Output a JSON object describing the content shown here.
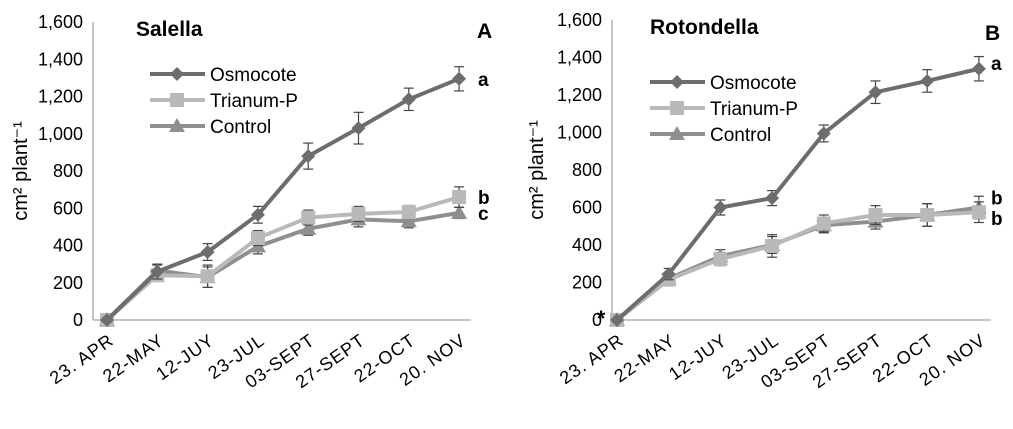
{
  "chart_data": [
    {
      "type": "line",
      "panel_label": "A",
      "title": "Salella",
      "ylabel": "cm² plant⁻¹",
      "ylim": [
        0,
        1600
      ],
      "yticks": [
        0,
        200,
        400,
        600,
        800,
        1000,
        1200,
        1400,
        1600
      ],
      "ytick_labels": [
        "0",
        "200",
        "400",
        "600",
        "800",
        "1,000",
        "1,200",
        "1,400",
        "1,600"
      ],
      "categories": [
        "23. APR",
        "22-MAY",
        "12-JUY",
        "23-JUL",
        "03-SEPT",
        "27-SEPT",
        "22-OCT",
        "20. NOV"
      ],
      "grid": false,
      "legend_position": "top-left",
      "series": [
        {
          "name": "Osmocote",
          "color": "#6d6d6d",
          "marker": "diamond",
          "values": [
            0,
            260,
            365,
            565,
            880,
            1030,
            1185,
            1295
          ],
          "errors": [
            0,
            40,
            45,
            45,
            70,
            85,
            60,
            65
          ],
          "letter": "a"
        },
        {
          "name": "Trianum-P",
          "color": "#b9b9b9",
          "marker": "square",
          "values": [
            0,
            240,
            235,
            440,
            550,
            570,
            580,
            660
          ],
          "errors": [
            0,
            30,
            60,
            40,
            40,
            40,
            35,
            55
          ],
          "letter": "b"
        },
        {
          "name": "Control",
          "color": "#8f8f8f",
          "marker": "triangle",
          "values": [
            0,
            265,
            230,
            395,
            490,
            540,
            530,
            575
          ],
          "errors": [
            0,
            30,
            55,
            40,
            35,
            40,
            35,
            30
          ],
          "letter": "c"
        }
      ],
      "annotations": []
    },
    {
      "type": "line",
      "panel_label": "B",
      "title": "Rotondella",
      "ylabel": "cm² plant⁻¹",
      "ylim": [
        0,
        1600
      ],
      "yticks": [
        0,
        200,
        400,
        600,
        800,
        1000,
        1200,
        1400,
        1600
      ],
      "ytick_labels": [
        "0",
        "200",
        "400",
        "600",
        "800",
        "1,000",
        "1,200",
        "1,400",
        "1,600"
      ],
      "categories": [
        "23. APR",
        "22-MAY",
        "12-JUY",
        "23-JUL",
        "03-SEPT",
        "27-SEPT",
        "22-OCT",
        "20. NOV"
      ],
      "grid": false,
      "legend_position": "top-left",
      "series": [
        {
          "name": "Osmocote",
          "color": "#6d6d6d",
          "marker": "diamond",
          "values": [
            0,
            245,
            600,
            650,
            995,
            1215,
            1275,
            1340
          ],
          "errors": [
            0,
            30,
            40,
            40,
            45,
            60,
            60,
            65
          ],
          "letter": "a"
        },
        {
          "name": "Trianum-P",
          "color": "#b9b9b9",
          "marker": "square",
          "values": [
            0,
            215,
            325,
            395,
            515,
            560,
            560,
            575
          ],
          "errors": [
            0,
            30,
            35,
            60,
            45,
            50,
            60,
            55
          ],
          "letter": "b"
        },
        {
          "name": "Control",
          "color": "#8f8f8f",
          "marker": "triangle",
          "values": [
            0,
            220,
            340,
            400,
            505,
            525,
            560,
            600
          ],
          "errors": [
            0,
            30,
            35,
            45,
            40,
            40,
            60,
            60
          ],
          "letter": "b"
        }
      ],
      "annotations": [
        "*"
      ]
    }
  ]
}
